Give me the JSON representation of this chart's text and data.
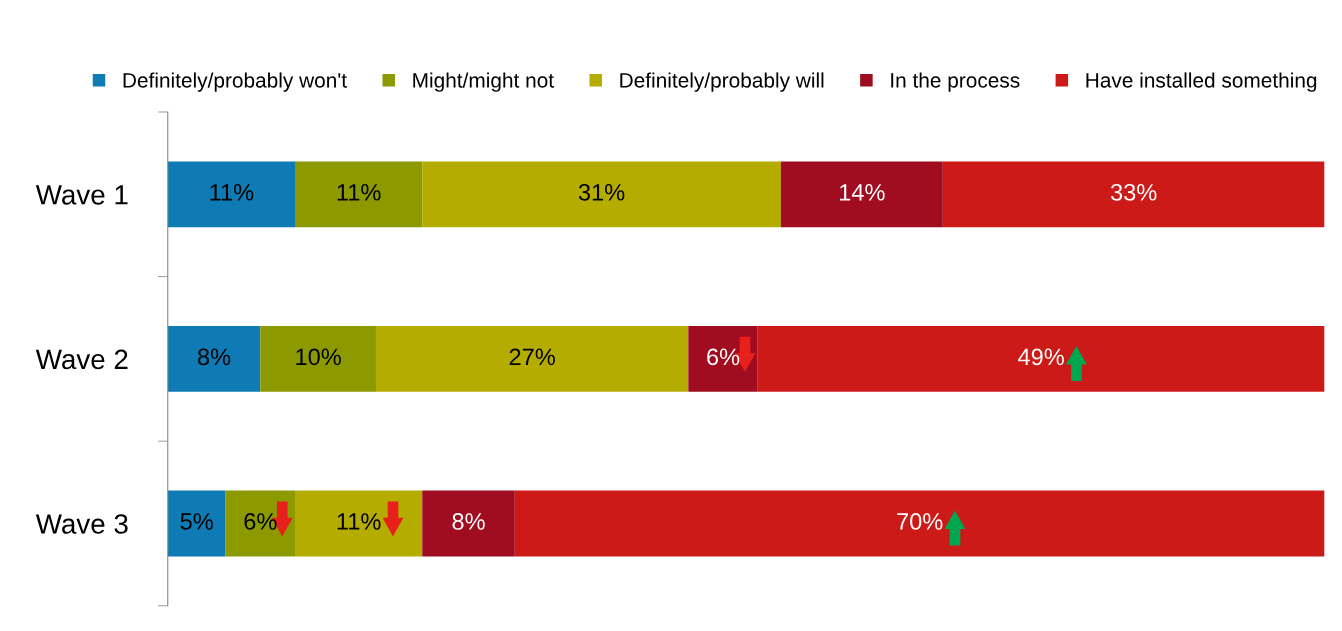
{
  "chart_data": {
    "type": "bar",
    "orientation": "horizontal",
    "stacked": true,
    "categories": [
      "Wave 1",
      "Wave 2",
      "Wave 3"
    ],
    "series": [
      {
        "name": "Definitely/probably won't",
        "color": "#0e7bb5",
        "values": [
          11,
          8,
          5
        ],
        "value_labels": [
          "11%",
          "8%",
          "5%"
        ]
      },
      {
        "name": "Might/might not",
        "color": "#8c9a00",
        "values": [
          11,
          10,
          6
        ],
        "value_labels": [
          "11%",
          "10%",
          "6%"
        ]
      },
      {
        "name": "Definitely/probably will",
        "color": "#b4ad00",
        "values": [
          31,
          27,
          11
        ],
        "value_labels": [
          "31%",
          "27%",
          "11%"
        ]
      },
      {
        "name": "In the process",
        "color": "#a00d20",
        "values": [
          14,
          6,
          8
        ],
        "value_labels": [
          "14%",
          "6%",
          "8%"
        ]
      },
      {
        "name": "Have installed something",
        "color": "#cc1a18",
        "values": [
          33,
          49,
          70
        ],
        "value_labels": [
          "33%",
          "49%",
          "70%"
        ]
      }
    ],
    "legend": "top",
    "grid": false
  }
}
